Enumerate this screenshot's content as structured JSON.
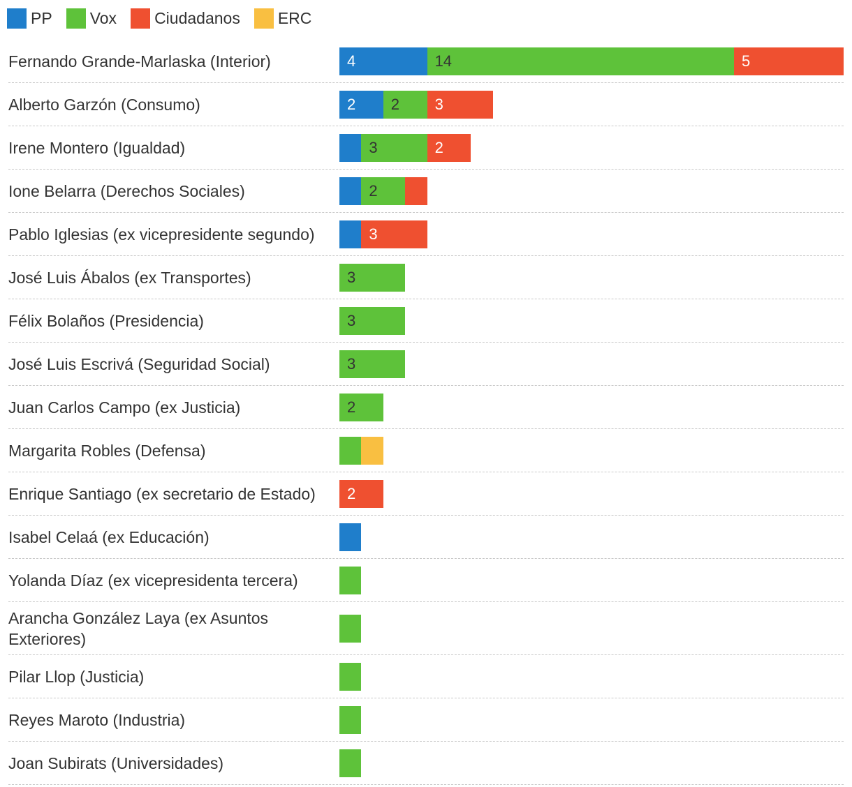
{
  "colors": {
    "PP": "#1f7ecb",
    "Vox": "#5ec23a",
    "Ciudadanos": "#ef5030",
    "ERC": "#f9bf41"
  },
  "chart_data": {
    "type": "bar",
    "orientation": "horizontal",
    "stacked": true,
    "legend_position": "top-left",
    "grid": false,
    "xlim": [
      0,
      23
    ],
    "series": [
      {
        "name": "PP",
        "values": [
          4,
          2,
          1,
          1,
          1,
          0,
          0,
          0,
          0,
          0,
          0,
          1,
          0,
          0,
          0,
          0,
          0
        ]
      },
      {
        "name": "Vox",
        "values": [
          14,
          2,
          3,
          2,
          0,
          3,
          3,
          3,
          2,
          1,
          0,
          0,
          1,
          1,
          1,
          1,
          1
        ]
      },
      {
        "name": "Ciudadanos",
        "values": [
          5,
          3,
          2,
          1,
          3,
          0,
          0,
          0,
          0,
          0,
          2,
          0,
          0,
          0,
          0,
          0,
          0
        ]
      },
      {
        "name": "ERC",
        "values": [
          0,
          0,
          0,
          0,
          0,
          0,
          0,
          0,
          0,
          1,
          0,
          0,
          0,
          0,
          0,
          0,
          0
        ]
      }
    ],
    "categories": [
      "Fernando Grande-Marlaska (Interior)",
      "Alberto Garzón (Consumo)",
      "Irene Montero (Igualdad)",
      "Ione Belarra (Derechos Sociales)",
      "Pablo Iglesias (ex vicepresidente segundo)",
      "José Luis Ábalos (ex Transportes)",
      "Félix Bolaños (Presidencia)",
      "José Luis Escrivá (Seguridad Social)",
      "Juan Carlos Campo (ex Justicia)",
      "Margarita Robles (Defensa)",
      "Enrique Santiago (ex secretario de Estado)",
      "Isabel Celaá (ex Educación)",
      "Yolanda Díaz (ex vicepresidenta tercera)",
      "Arancha González Laya (ex Asuntos Exteriores)",
      "Pilar Llop (Justicia)",
      "Reyes Maroto (Industria)",
      "Joan Subirats (Universidades)"
    ]
  }
}
